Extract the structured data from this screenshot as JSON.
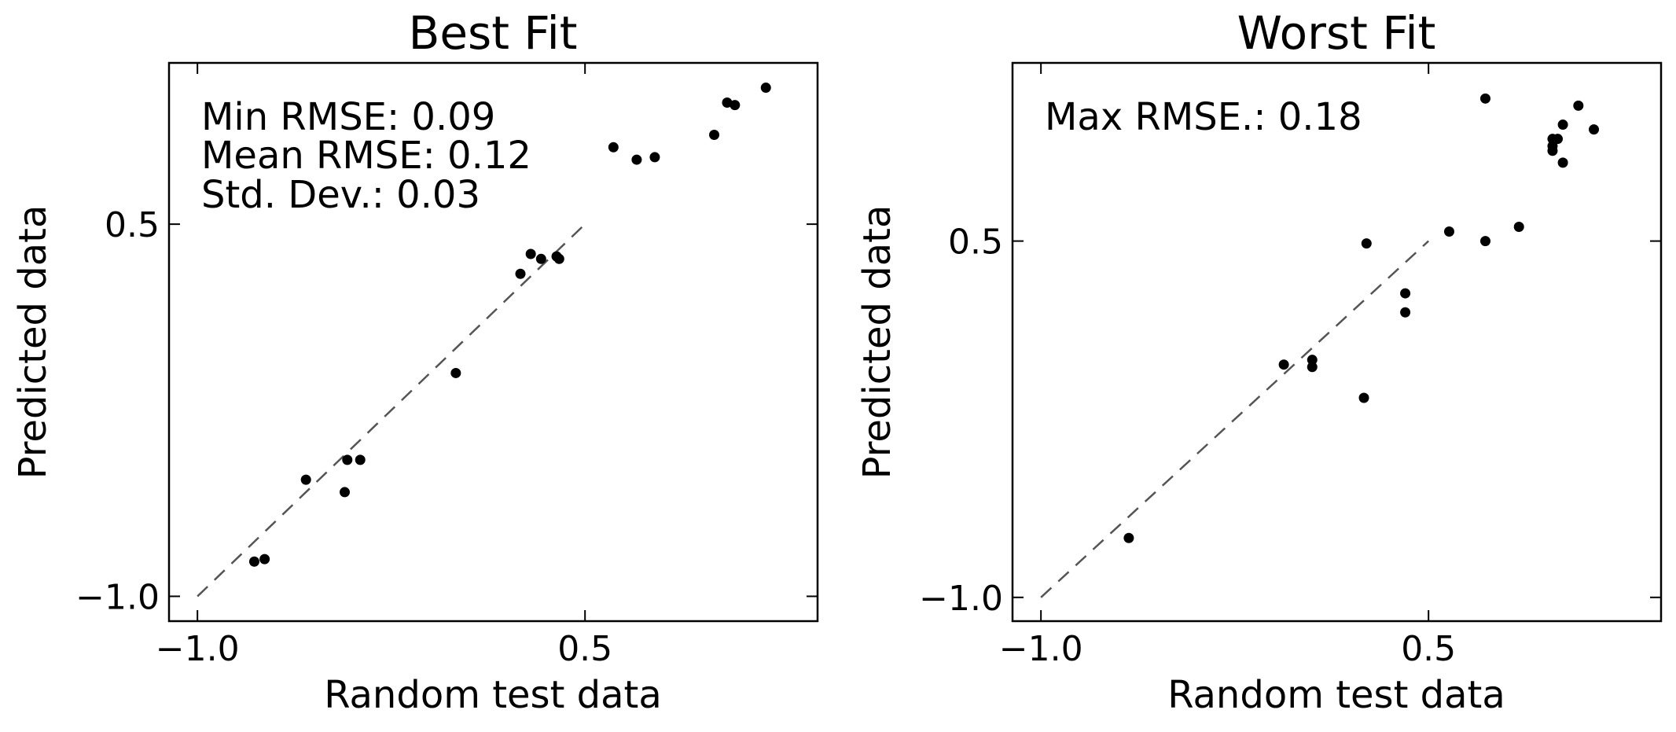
{
  "chart_data": [
    {
      "type": "scatter",
      "title": "Best Fit",
      "xlabel": "Random test data",
      "ylabel": "Predicted data",
      "xlim": [
        -1.11,
        1.4
      ],
      "ylim": [
        -1.1,
        1.15
      ],
      "xticks": [
        -1.0,
        0.5
      ],
      "yticks": [
        -1.0,
        0.5
      ],
      "xtick_labels": [
        "−1.0",
        "0.5"
      ],
      "ytick_labels": [
        "−1.0",
        "0.5"
      ],
      "grid": false,
      "annotations": [
        "Min RMSE: 0.09",
        "Mean RMSE: 0.12",
        "Std. Dev.: 0.03"
      ],
      "reference_line": {
        "x": [
          -1.0,
          0.5
        ],
        "y": [
          -1.0,
          0.5
        ]
      },
      "points": {
        "x": [
          -0.78,
          -0.74,
          -0.58,
          -0.43,
          -0.42,
          -0.37,
          0.0,
          0.25,
          0.29,
          0.33,
          0.39,
          0.4,
          0.61,
          0.7,
          0.77,
          1.0,
          1.05,
          1.08,
          1.2
        ],
        "y": [
          -0.86,
          -0.85,
          -0.53,
          -0.58,
          -0.45,
          -0.45,
          -0.1,
          0.3,
          0.38,
          0.36,
          0.37,
          0.36,
          0.81,
          0.76,
          0.77,
          0.86,
          0.99,
          0.98,
          1.05
        ]
      },
      "marker_color": "#000000",
      "line_color": "#555555"
    },
    {
      "type": "scatter",
      "title": "Worst Fit",
      "xlabel": "Random test data",
      "ylabel": "Predicted data",
      "xlim": [
        -1.11,
        1.4
      ],
      "ylim": [
        -1.1,
        1.25
      ],
      "xticks": [
        -1.0,
        0.5
      ],
      "yticks": [
        -1.0,
        0.5
      ],
      "xtick_labels": [
        "−1.0",
        "0.5"
      ],
      "ytick_labels": [
        "−1.0",
        "0.5"
      ],
      "grid": false,
      "annotations": [
        "Max RMSE.: 0.18"
      ],
      "reference_line": {
        "x": [
          -1.0,
          0.5
        ],
        "y": [
          -1.0,
          0.5
        ]
      },
      "points": {
        "x": [
          -0.66,
          -0.06,
          0.05,
          0.05,
          0.25,
          0.26,
          0.41,
          0.41,
          0.58,
          0.72,
          0.72,
          0.85,
          0.98,
          0.98,
          0.98,
          1.0,
          1.02,
          1.02,
          1.08,
          1.14
        ],
        "y": [
          -0.75,
          -0.02,
          -0.03,
          0.0,
          -0.16,
          0.49,
          0.28,
          0.2,
          0.54,
          0.5,
          1.1,
          0.56,
          0.9,
          0.88,
          0.93,
          0.93,
          0.83,
          0.99,
          1.07,
          0.97
        ]
      },
      "marker_color": "#000000",
      "line_color": "#555555"
    }
  ]
}
